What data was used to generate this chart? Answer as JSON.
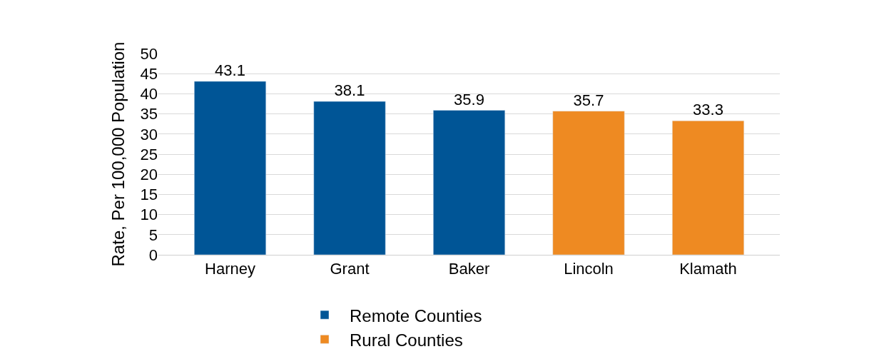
{
  "chart_data": {
    "type": "bar",
    "ylabel": "Rate, Per 100,000 Population",
    "categories": [
      "Harney",
      "Grant",
      "Baker",
      "Lincoln",
      "Klamath"
    ],
    "series": [
      {
        "name": "Remote Counties",
        "color": "#005596",
        "values": [
          43.1,
          38.1,
          35.9,
          null,
          null
        ]
      },
      {
        "name": "Rural Counties",
        "color": "#ee8a22",
        "values": [
          null,
          null,
          null,
          35.7,
          33.3
        ]
      }
    ],
    "ylim": [
      0,
      50
    ],
    "yticks": [
      0,
      5,
      10,
      15,
      20,
      25,
      30,
      35,
      40,
      45,
      50
    ],
    "data_labels": true,
    "grid": "y",
    "legend": "bottom"
  }
}
